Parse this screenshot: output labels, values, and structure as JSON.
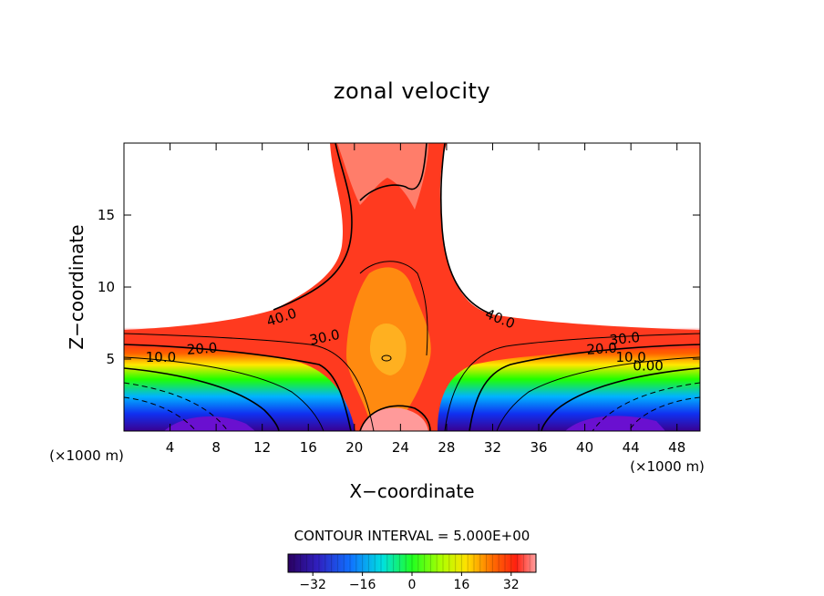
{
  "chart_data": {
    "type": "heatmap",
    "title": "zonal velocity",
    "xlabel": "X−coordinate",
    "ylabel": "Z−coordinate",
    "x_unit_left": "(×1000 m)",
    "x_unit_right": "(×1000 m)",
    "xlim": [
      0,
      50
    ],
    "ylim": [
      0,
      20
    ],
    "x_ticks": [
      4,
      8,
      12,
      16,
      20,
      24,
      28,
      32,
      36,
      40,
      44,
      48
    ],
    "y_ticks": [
      5,
      10,
      15
    ],
    "contour_labels": [
      {
        "text": "40.0",
        "x": 13.8,
        "y": 7.6,
        "angle": -18
      },
      {
        "text": "30.0",
        "x": 17.5,
        "y": 6.2,
        "angle": -12
      },
      {
        "text": "20.0",
        "x": 6.8,
        "y": 5.4,
        "angle": -4
      },
      {
        "text": "10.0",
        "x": 3.2,
        "y": 4.8,
        "angle": 0
      },
      {
        "text": "40.0",
        "x": 32.5,
        "y": 7.5,
        "angle": 22
      },
      {
        "text": "30.0",
        "x": 43.5,
        "y": 6.1,
        "angle": -6
      },
      {
        "text": "20.0",
        "x": 41.5,
        "y": 5.4,
        "angle": -4
      },
      {
        "text": "10.0",
        "x": 44.0,
        "y": 4.8,
        "angle": 0
      },
      {
        "text": "0.00",
        "x": 45.5,
        "y": 4.2,
        "angle": 0
      }
    ],
    "contour_interval_label": "CONTOUR INTERVAL = 5.000E+00",
    "colorbar": {
      "min": -40,
      "max": 40,
      "tick_values": [
        -32,
        -16,
        0,
        16,
        32
      ],
      "tick_labels": [
        "−32",
        "−16",
        "0",
        "16",
        "32"
      ]
    },
    "grid": false,
    "colors": {
      "max": "#ff9a9a",
      "high": "#ff2a1a",
      "mid": "#ffb000",
      "zero": "#20ff00",
      "low": "#00b4ff",
      "min": "#3a0090"
    }
  }
}
